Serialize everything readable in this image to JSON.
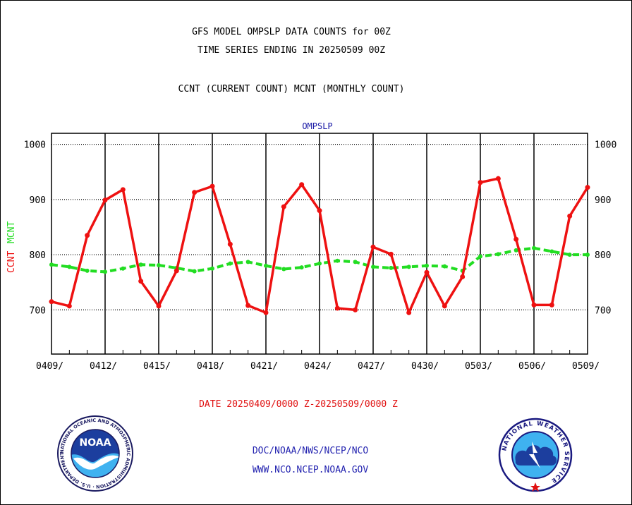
{
  "header": {
    "title_line1": "GFS MODEL OMPSLP DATA COUNTS for 00Z",
    "title_line2": "TIME SERIES ENDING IN 20250509 00Z",
    "title_line3": "CCNT (CURRENT COUNT) MCNT (MONTHLY COUNT)"
  },
  "footer": {
    "date_range": "DATE 20250409/0000 Z-20250509/0000 Z",
    "org_path": "DOC/NOAA/NWS/NCEP/NCO",
    "website": "WWW.NCO.NCEP.NOAA.GOV"
  },
  "logos": {
    "noaa_text": "NOAA",
    "noaa_ring_text": "NATIONAL OCEANIC AND ATMOSPHERIC ADMINISTRATION · U.S. DEPARTMENT OF COMMERCE ·",
    "nws_ring_text": "NATIONAL WEATHER SERVICE"
  },
  "colors": {
    "ccnt": "#ee1111",
    "mcnt": "#22dd22",
    "grid": "#000000",
    "panel_label": "#1a1aa6"
  },
  "chart_data": {
    "type": "line",
    "panel_label": "OMPSLP",
    "ylabel_ccnt": "CCNT",
    "ylabel_mcnt": "MCNT",
    "ylim": [
      620,
      1020
    ],
    "y_ticks": [
      700,
      800,
      900,
      1000
    ],
    "x_ticks": [
      "0409/",
      "0412/",
      "0415/",
      "0418/",
      "0421/",
      "0424/",
      "0427/",
      "0430/",
      "0503/",
      "0506/",
      "0509/"
    ],
    "x_dates": [
      "0409",
      "0410",
      "0411",
      "0412",
      "0413",
      "0414",
      "0415",
      "0416",
      "0417",
      "0418",
      "0419",
      "0420",
      "0421",
      "0422",
      "0423",
      "0424",
      "0425",
      "0426",
      "0427",
      "0428",
      "0429",
      "0430",
      "0501",
      "0502",
      "0503",
      "0504",
      "0505",
      "0506",
      "0507",
      "0508",
      "0509"
    ],
    "series": [
      {
        "name": "CCNT",
        "values": [
          715,
          707,
          835,
          899,
          918,
          752,
          707,
          771,
          913,
          924,
          819,
          708,
          695,
          887,
          927,
          880,
          703,
          700,
          814,
          801,
          695,
          768,
          707,
          760,
          931,
          938,
          828,
          709,
          709,
          870,
          922
        ]
      },
      {
        "name": "MCNT",
        "values": [
          782,
          778,
          771,
          769,
          775,
          782,
          781,
          776,
          770,
          775,
          784,
          787,
          780,
          774,
          777,
          784,
          789,
          787,
          778,
          776,
          778,
          780,
          779,
          771,
          797,
          801,
          808,
          812,
          806,
          800,
          800
        ]
      }
    ],
    "grid": true
  }
}
